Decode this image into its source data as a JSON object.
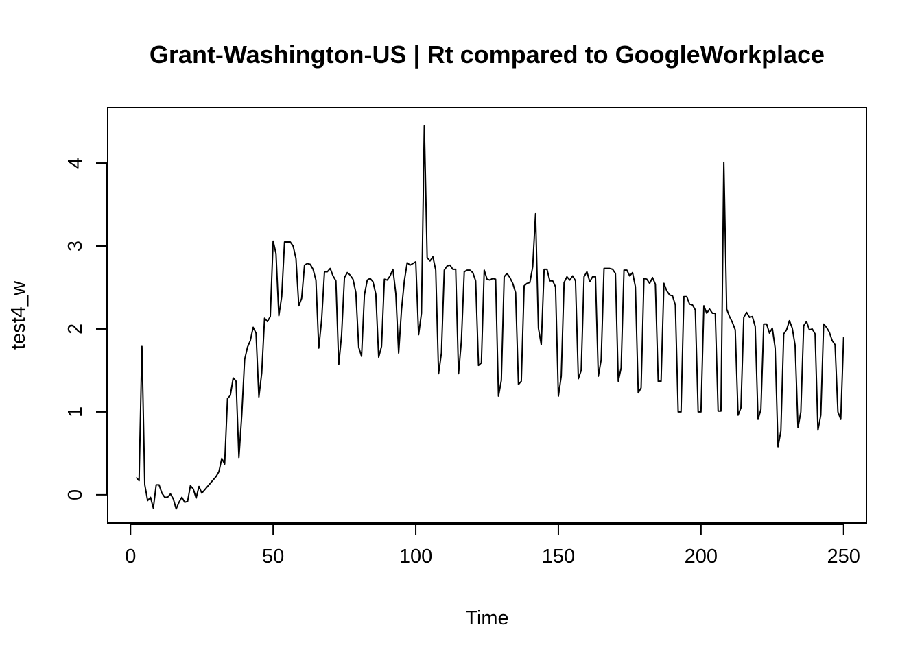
{
  "chart_data": {
    "type": "line",
    "title": "Grant-Washington-US | Rt compared to GoogleWorkplace",
    "xlabel": "Time",
    "ylabel": "test4_w",
    "xlim": [
      -8,
      258
    ],
    "ylim": [
      -0.34,
      4.67
    ],
    "xticks": [
      0,
      50,
      100,
      150,
      200,
      250
    ],
    "yticks": [
      0,
      1,
      2,
      3,
      4
    ],
    "grid": false,
    "series": [
      {
        "points": [
          [
            2,
            0.21
          ],
          [
            3,
            0.17
          ],
          [
            4,
            1.79
          ],
          [
            5,
            0.12
          ],
          [
            6,
            -0.07
          ],
          [
            7,
            -0.03
          ],
          [
            8,
            -0.16
          ],
          [
            9,
            0.12
          ],
          [
            10,
            0.12
          ],
          [
            11,
            0.02
          ],
          [
            12,
            -0.03
          ],
          [
            13,
            -0.03
          ],
          [
            14,
            0.01
          ],
          [
            15,
            -0.05
          ],
          [
            16,
            -0.17
          ],
          [
            17,
            -0.09
          ],
          [
            18,
            -0.03
          ],
          [
            19,
            -0.09
          ],
          [
            20,
            -0.08
          ],
          [
            21,
            0.11
          ],
          [
            22,
            0.07
          ],
          [
            23,
            -0.04
          ],
          [
            24,
            0.1
          ],
          [
            25,
            0.02
          ],
          [
            26,
            0.06
          ],
          [
            27,
            0.1
          ],
          [
            28,
            0.14
          ],
          [
            29,
            0.18
          ],
          [
            30,
            0.22
          ],
          [
            31,
            0.28
          ],
          [
            32,
            0.44
          ],
          [
            33,
            0.37
          ],
          [
            34,
            1.16
          ],
          [
            35,
            1.2
          ],
          [
            36,
            1.41
          ],
          [
            37,
            1.37
          ],
          [
            38,
            0.45
          ],
          [
            39,
            0.96
          ],
          [
            40,
            1.63
          ],
          [
            41,
            1.78
          ],
          [
            42,
            1.86
          ],
          [
            43,
            2.02
          ],
          [
            44,
            1.95
          ],
          [
            45,
            1.18
          ],
          [
            46,
            1.47
          ],
          [
            47,
            2.13
          ],
          [
            48,
            2.09
          ],
          [
            49,
            2.15
          ],
          [
            50,
            3.06
          ],
          [
            51,
            2.91
          ],
          [
            52,
            2.16
          ],
          [
            53,
            2.39
          ],
          [
            54,
            3.05
          ],
          [
            55,
            3.05
          ],
          [
            56,
            3.05
          ],
          [
            57,
            3.0
          ],
          [
            58,
            2.85
          ],
          [
            59,
            2.28
          ],
          [
            60,
            2.37
          ],
          [
            61,
            2.77
          ],
          [
            62,
            2.79
          ],
          [
            63,
            2.78
          ],
          [
            64,
            2.72
          ],
          [
            65,
            2.59
          ],
          [
            66,
            1.77
          ],
          [
            67,
            2.11
          ],
          [
            68,
            2.69
          ],
          [
            69,
            2.69
          ],
          [
            70,
            2.73
          ],
          [
            71,
            2.64
          ],
          [
            72,
            2.58
          ],
          [
            73,
            1.57
          ],
          [
            74,
            1.93
          ],
          [
            75,
            2.62
          ],
          [
            76,
            2.68
          ],
          [
            77,
            2.65
          ],
          [
            78,
            2.6
          ],
          [
            79,
            2.44
          ],
          [
            80,
            1.78
          ],
          [
            81,
            1.67
          ],
          [
            82,
            2.41
          ],
          [
            83,
            2.59
          ],
          [
            84,
            2.61
          ],
          [
            85,
            2.57
          ],
          [
            86,
            2.42
          ],
          [
            87,
            1.66
          ],
          [
            88,
            1.79
          ],
          [
            89,
            2.6
          ],
          [
            90,
            2.59
          ],
          [
            91,
            2.64
          ],
          [
            92,
            2.72
          ],
          [
            93,
            2.43
          ],
          [
            94,
            1.71
          ],
          [
            95,
            2.23
          ],
          [
            96,
            2.58
          ],
          [
            97,
            2.8
          ],
          [
            98,
            2.77
          ],
          [
            99,
            2.79
          ],
          [
            100,
            2.81
          ],
          [
            101,
            1.93
          ],
          [
            102,
            2.19
          ],
          [
            103,
            4.45
          ],
          [
            104,
            2.86
          ],
          [
            105,
            2.82
          ],
          [
            106,
            2.87
          ],
          [
            107,
            2.71
          ],
          [
            108,
            1.46
          ],
          [
            109,
            1.71
          ],
          [
            110,
            2.71
          ],
          [
            111,
            2.76
          ],
          [
            112,
            2.77
          ],
          [
            113,
            2.72
          ],
          [
            114,
            2.72
          ],
          [
            115,
            1.46
          ],
          [
            116,
            1.86
          ],
          [
            117,
            2.69
          ],
          [
            118,
            2.71
          ],
          [
            119,
            2.71
          ],
          [
            120,
            2.68
          ],
          [
            121,
            2.58
          ],
          [
            122,
            1.56
          ],
          [
            123,
            1.59
          ],
          [
            124,
            2.71
          ],
          [
            125,
            2.6
          ],
          [
            126,
            2.59
          ],
          [
            127,
            2.61
          ],
          [
            128,
            2.6
          ],
          [
            129,
            1.19
          ],
          [
            130,
            1.38
          ],
          [
            131,
            2.63
          ],
          [
            132,
            2.67
          ],
          [
            133,
            2.62
          ],
          [
            134,
            2.55
          ],
          [
            135,
            2.44
          ],
          [
            136,
            1.33
          ],
          [
            137,
            1.37
          ],
          [
            138,
            2.52
          ],
          [
            139,
            2.55
          ],
          [
            140,
            2.56
          ],
          [
            141,
            2.75
          ],
          [
            142,
            3.39
          ],
          [
            143,
            2.01
          ],
          [
            144,
            1.81
          ],
          [
            145,
            2.72
          ],
          [
            146,
            2.72
          ],
          [
            147,
            2.58
          ],
          [
            148,
            2.58
          ],
          [
            149,
            2.51
          ],
          [
            150,
            1.19
          ],
          [
            151,
            1.43
          ],
          [
            152,
            2.56
          ],
          [
            153,
            2.63
          ],
          [
            154,
            2.59
          ],
          [
            155,
            2.64
          ],
          [
            156,
            2.58
          ],
          [
            157,
            1.4
          ],
          [
            158,
            1.5
          ],
          [
            159,
            2.63
          ],
          [
            160,
            2.69
          ],
          [
            161,
            2.57
          ],
          [
            162,
            2.63
          ],
          [
            163,
            2.63
          ],
          [
            164,
            1.43
          ],
          [
            165,
            1.63
          ],
          [
            166,
            2.73
          ],
          [
            167,
            2.73
          ],
          [
            168,
            2.73
          ],
          [
            169,
            2.72
          ],
          [
            170,
            2.67
          ],
          [
            171,
            1.37
          ],
          [
            172,
            1.53
          ],
          [
            173,
            2.71
          ],
          [
            174,
            2.71
          ],
          [
            175,
            2.64
          ],
          [
            176,
            2.68
          ],
          [
            177,
            2.51
          ],
          [
            178,
            1.23
          ],
          [
            179,
            1.29
          ],
          [
            180,
            2.61
          ],
          [
            181,
            2.6
          ],
          [
            182,
            2.55
          ],
          [
            183,
            2.62
          ],
          [
            184,
            2.54
          ],
          [
            185,
            1.37
          ],
          [
            186,
            1.37
          ],
          [
            187,
            2.55
          ],
          [
            188,
            2.46
          ],
          [
            189,
            2.41
          ],
          [
            190,
            2.4
          ],
          [
            191,
            2.29
          ],
          [
            192,
            1.0
          ],
          [
            193,
            1.0
          ],
          [
            194,
            2.39
          ],
          [
            195,
            2.39
          ],
          [
            196,
            2.3
          ],
          [
            197,
            2.29
          ],
          [
            198,
            2.23
          ],
          [
            199,
            1.0
          ],
          [
            200,
            1.0
          ],
          [
            201,
            2.28
          ],
          [
            202,
            2.19
          ],
          [
            203,
            2.24
          ],
          [
            204,
            2.19
          ],
          [
            205,
            2.19
          ],
          [
            206,
            1.01
          ],
          [
            207,
            1.01
          ],
          [
            208,
            4.01
          ],
          [
            209,
            2.24
          ],
          [
            210,
            2.15
          ],
          [
            211,
            2.08
          ],
          [
            212,
            1.99
          ],
          [
            213,
            0.96
          ],
          [
            214,
            1.05
          ],
          [
            215,
            2.14
          ],
          [
            216,
            2.2
          ],
          [
            217,
            2.14
          ],
          [
            218,
            2.15
          ],
          [
            219,
            2.03
          ],
          [
            220,
            0.91
          ],
          [
            221,
            1.03
          ],
          [
            222,
            2.06
          ],
          [
            223,
            2.06
          ],
          [
            224,
            1.95
          ],
          [
            225,
            2.01
          ],
          [
            226,
            1.77
          ],
          [
            227,
            0.58
          ],
          [
            228,
            0.77
          ],
          [
            229,
            1.94
          ],
          [
            230,
            1.99
          ],
          [
            231,
            2.1
          ],
          [
            232,
            2.01
          ],
          [
            233,
            1.8
          ],
          [
            234,
            0.81
          ],
          [
            235,
            1.0
          ],
          [
            236,
            2.04
          ],
          [
            237,
            2.09
          ],
          [
            238,
            1.99
          ],
          [
            239,
            2.0
          ],
          [
            240,
            1.94
          ],
          [
            241,
            0.78
          ],
          [
            242,
            0.96
          ],
          [
            243,
            2.06
          ],
          [
            244,
            2.02
          ],
          [
            245,
            1.96
          ],
          [
            246,
            1.86
          ],
          [
            247,
            1.81
          ],
          [
            248,
            1.0
          ],
          [
            249,
            0.91
          ],
          [
            250,
            1.9
          ]
        ]
      }
    ]
  }
}
